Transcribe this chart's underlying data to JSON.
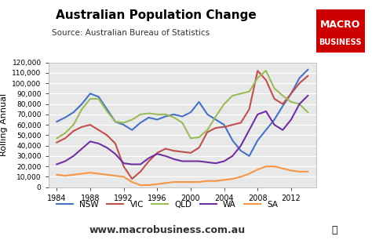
{
  "title": "Australian Population Change",
  "source": "Source: Australian Bureau of Statistics",
  "ylabel": "Rolling Annual",
  "website": "www.macrobusiness.com.au",
  "logo_text1": "MACRO",
  "logo_text2": "BUSINESS",
  "logo_color": "#cc0000",
  "bg_color": "#e8e8e8",
  "ylim": [
    0,
    120000
  ],
  "yticks": [
    0,
    10000,
    20000,
    30000,
    40000,
    50000,
    60000,
    70000,
    80000,
    90000,
    100000,
    110000,
    120000
  ],
  "ytick_labels": [
    "0",
    "10,000",
    "20,000",
    "30,000",
    "40,000",
    "50,000",
    "60,000",
    "70,000",
    "80,000",
    "90,000",
    "100,000",
    "110,000",
    "120,000"
  ],
  "xticks": [
    1984,
    1988,
    1992,
    1996,
    2000,
    2004,
    2008,
    2012
  ],
  "series": {
    "NSW": {
      "color": "#4472c4",
      "x": [
        1984,
        1985,
        1986,
        1987,
        1988,
        1989,
        1990,
        1991,
        1992,
        1993,
        1994,
        1995,
        1996,
        1997,
        1998,
        1999,
        2000,
        2001,
        2002,
        2003,
        2004,
        2005,
        2006,
        2007,
        2008,
        2009,
        2010,
        2011,
        2012,
        2013,
        2014
      ],
      "y": [
        63000,
        67000,
        72000,
        80000,
        90000,
        87000,
        75000,
        63000,
        60000,
        55000,
        62000,
        67000,
        65000,
        68000,
        70000,
        68000,
        72000,
        82000,
        70000,
        65000,
        60000,
        45000,
        35000,
        30000,
        45000,
        55000,
        65000,
        78000,
        90000,
        105000,
        113000
      ]
    },
    "VIC": {
      "color": "#c0504d",
      "x": [
        1984,
        1985,
        1986,
        1987,
        1988,
        1989,
        1990,
        1991,
        1992,
        1993,
        1994,
        1995,
        1996,
        1997,
        1998,
        1999,
        2000,
        2001,
        2002,
        2003,
        2004,
        2005,
        2006,
        2007,
        2008,
        2009,
        2010,
        2011,
        2012,
        2013,
        2014
      ],
      "y": [
        43000,
        47000,
        54000,
        58000,
        60000,
        55000,
        50000,
        42000,
        20000,
        8000,
        15000,
        25000,
        33000,
        37000,
        35000,
        34000,
        33000,
        38000,
        53000,
        57000,
        58000,
        60000,
        62000,
        75000,
        112000,
        103000,
        85000,
        80000,
        90000,
        100000,
        107000
      ]
    },
    "QLD": {
      "color": "#9bbb59",
      "x": [
        1984,
        1985,
        1986,
        1987,
        1988,
        1989,
        1990,
        1991,
        1992,
        1993,
        1994,
        1995,
        1996,
        1997,
        1998,
        1999,
        2000,
        2001,
        2002,
        2003,
        2004,
        2005,
        2006,
        2007,
        2008,
        2009,
        2010,
        2011,
        2012,
        2013,
        2014
      ],
      "y": [
        47000,
        52000,
        60000,
        75000,
        85000,
        85000,
        73000,
        63000,
        62000,
        65000,
        70000,
        71000,
        70000,
        70000,
        67000,
        62000,
        47000,
        48000,
        55000,
        68000,
        80000,
        88000,
        90000,
        92000,
        105000,
        112000,
        95000,
        88000,
        82000,
        80000,
        72000
      ]
    },
    "WA": {
      "color": "#7030a0",
      "x": [
        1984,
        1985,
        1986,
        1987,
        1988,
        1989,
        1990,
        1991,
        1992,
        1993,
        1994,
        1995,
        1996,
        1997,
        1998,
        1999,
        2000,
        2001,
        2002,
        2003,
        2004,
        2005,
        2006,
        2007,
        2008,
        2009,
        2010,
        2011,
        2012,
        2013,
        2014
      ],
      "y": [
        22000,
        25000,
        30000,
        37000,
        44000,
        42000,
        38000,
        32000,
        23000,
        22000,
        22000,
        28000,
        32000,
        30000,
        27000,
        25000,
        25000,
        25000,
        24000,
        23000,
        25000,
        30000,
        40000,
        55000,
        70000,
        73000,
        60000,
        55000,
        65000,
        80000,
        88000
      ]
    },
    "SA": {
      "color": "#f79646",
      "x": [
        1984,
        1985,
        1986,
        1987,
        1988,
        1989,
        1990,
        1991,
        1992,
        1993,
        1994,
        1995,
        1996,
        1997,
        1998,
        1999,
        2000,
        2001,
        2002,
        2003,
        2004,
        2005,
        2006,
        2007,
        2008,
        2009,
        2010,
        2011,
        2012,
        2013,
        2014
      ],
      "y": [
        12000,
        11000,
        12000,
        13000,
        14000,
        13000,
        12000,
        11000,
        10000,
        5000,
        2000,
        2000,
        3000,
        4000,
        5000,
        5000,
        5000,
        5000,
        6000,
        6000,
        7000,
        8000,
        10000,
        13000,
        17000,
        20000,
        20000,
        18000,
        16000,
        15000,
        15000
      ]
    }
  }
}
